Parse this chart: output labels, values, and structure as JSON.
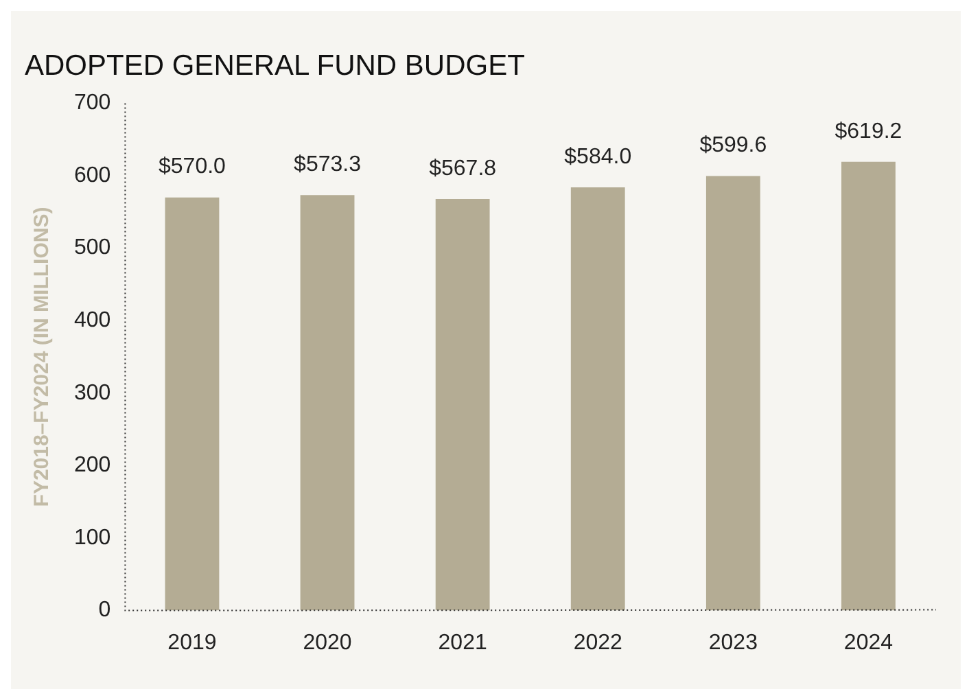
{
  "chart_data": {
    "type": "bar",
    "title": "ADOPTED GENERAL FUND BUDGET",
    "ylabel": "FY2018–FY2024 (IN MILLIONS)",
    "categories": [
      "2019",
      "2020",
      "2021",
      "2022",
      "2023",
      "2024"
    ],
    "values": [
      570.0,
      573.3,
      567.8,
      584.0,
      599.6,
      619.2
    ],
    "value_labels": [
      "$570.0",
      "$573.3",
      "$567.8",
      "$584.0",
      "$599.6",
      "$619.2"
    ],
    "color": "#b4ac94",
    "ylim": [
      0,
      700
    ],
    "yticks": [
      0,
      100,
      200,
      300,
      400,
      500,
      600,
      700
    ],
    "grid": false,
    "legend": false
  }
}
